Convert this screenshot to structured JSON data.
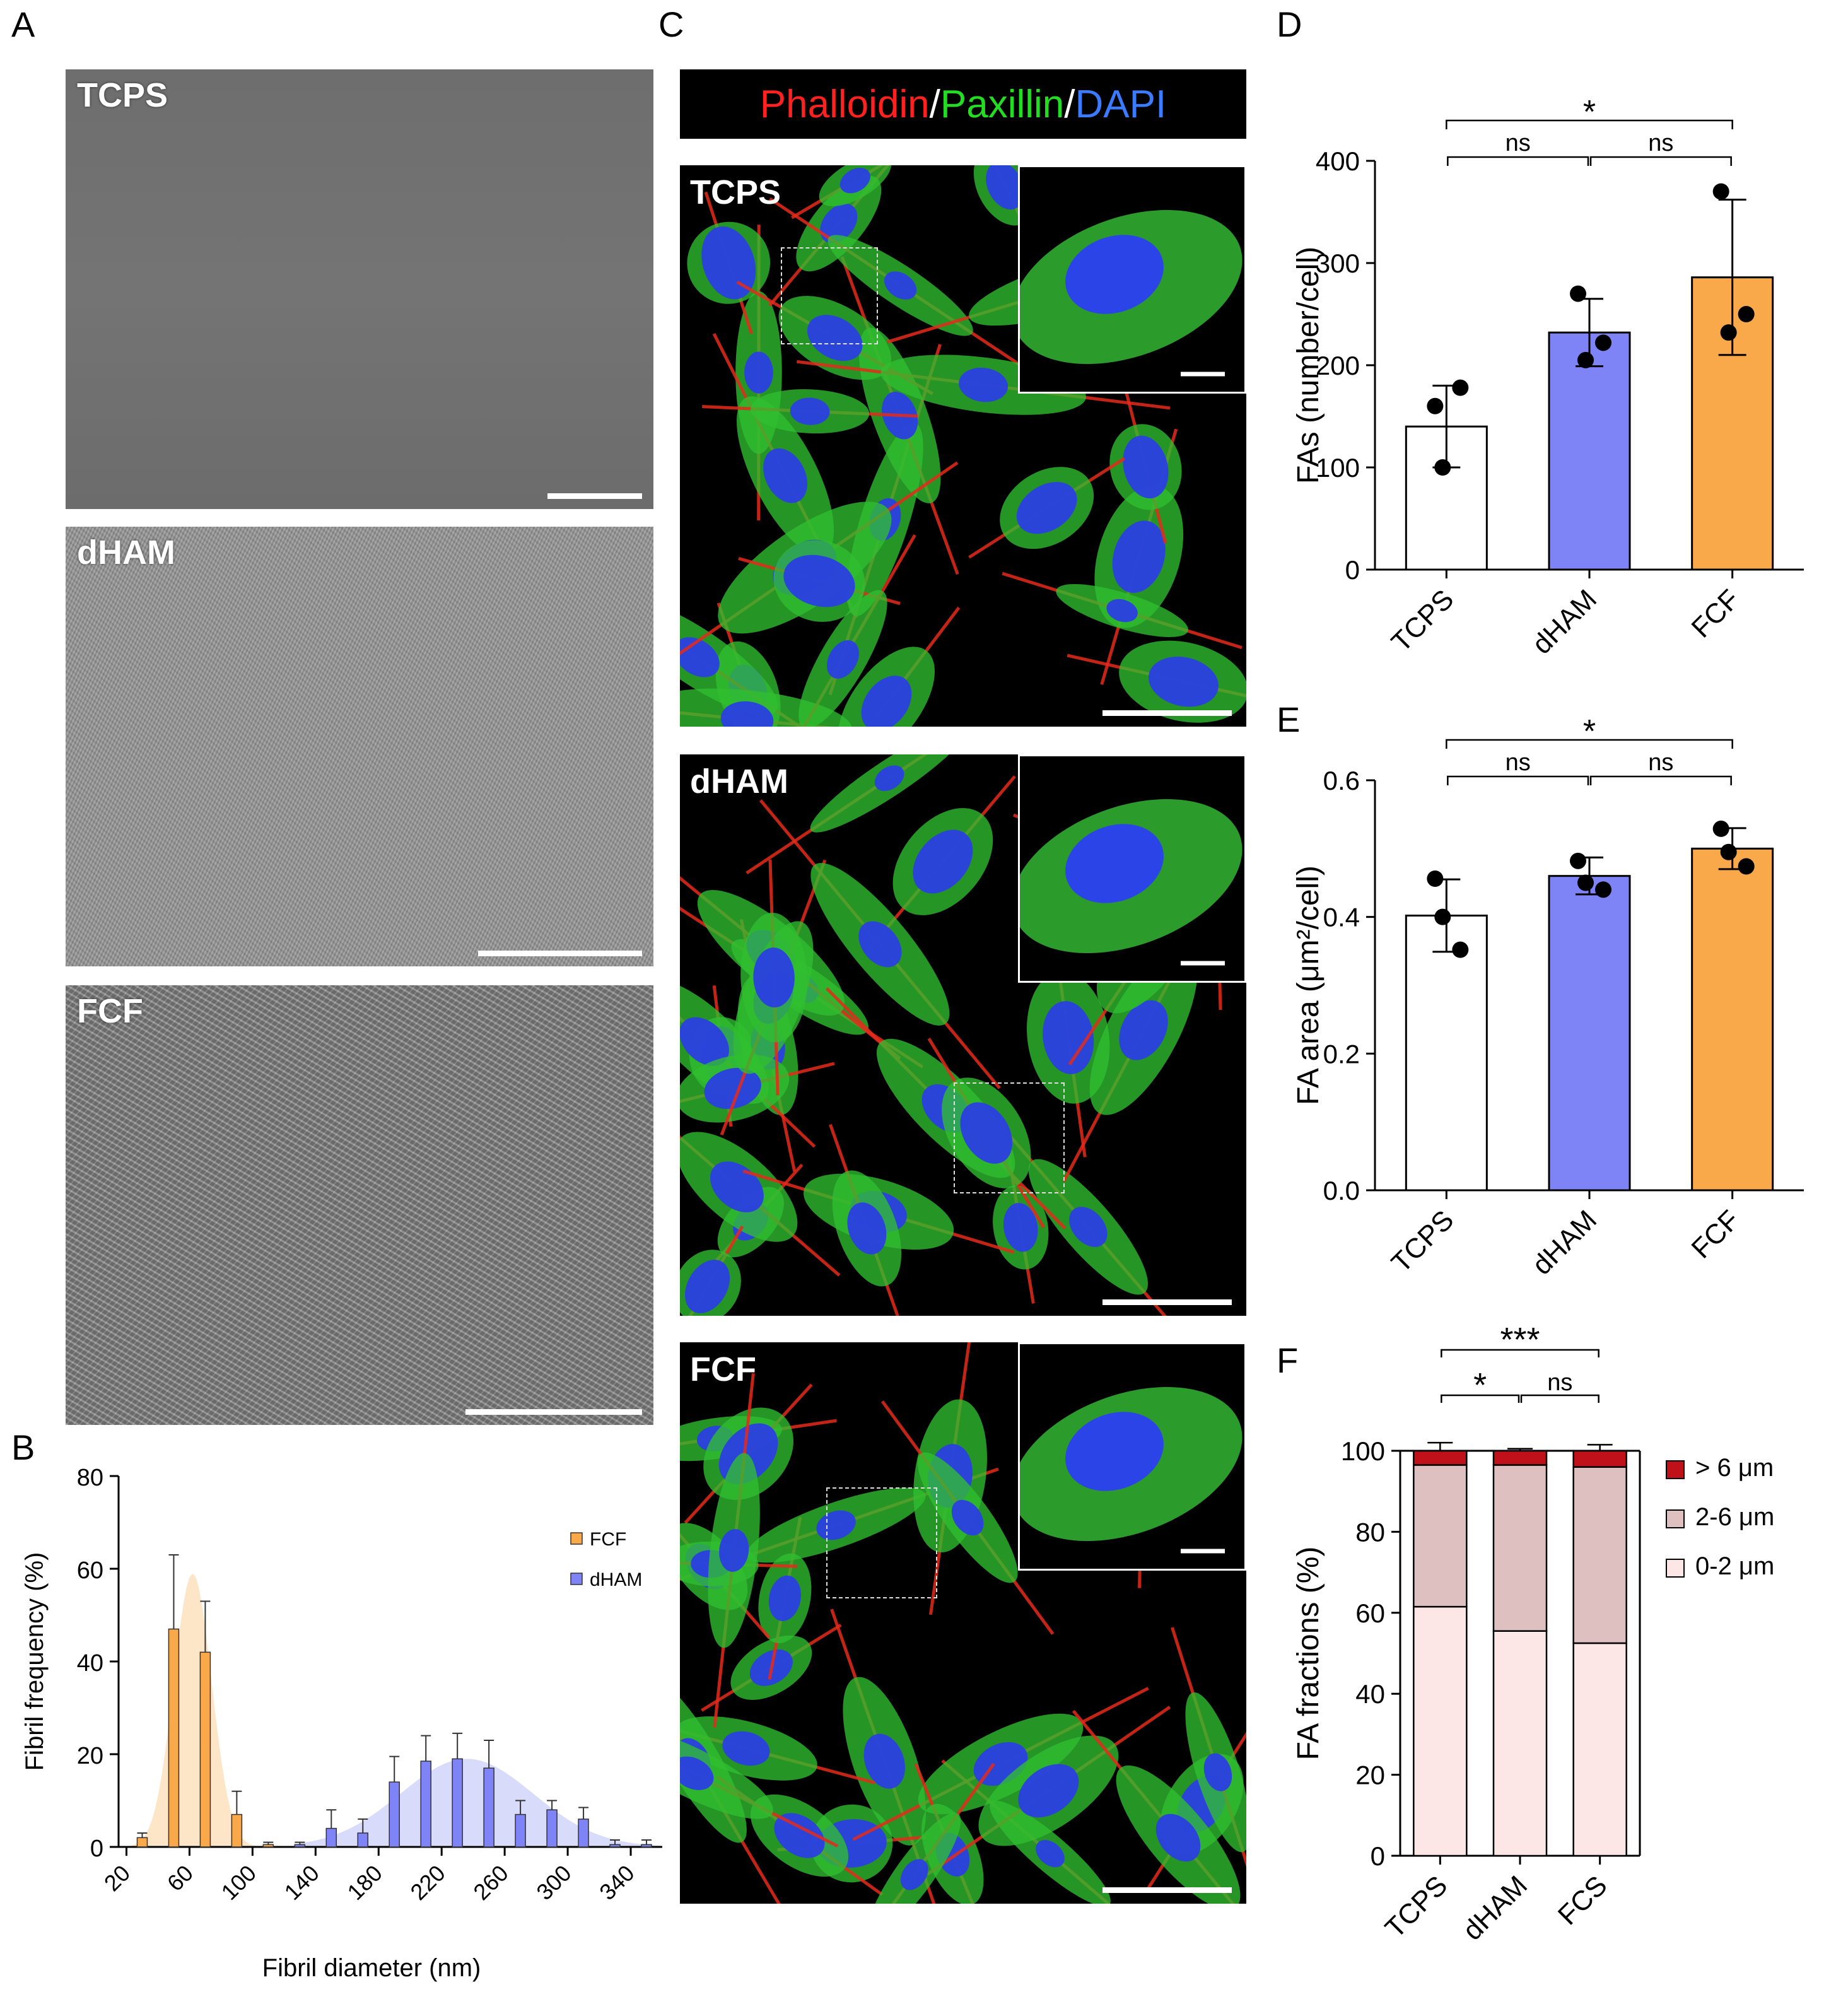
{
  "panel_letters": {
    "a": "A",
    "b": "B",
    "c": "C",
    "d": "D",
    "e": "E",
    "f": "F"
  },
  "panel_a": {
    "images": [
      {
        "label": "TCPS",
        "kind": "flat-surface"
      },
      {
        "label": "dHAM",
        "kind": "textured-surface"
      },
      {
        "label": "FCF",
        "kind": "fibrillar-surface"
      }
    ]
  },
  "panel_c": {
    "header": {
      "parts": [
        {
          "text": "Phalloidin",
          "color": "#ff2020"
        },
        {
          "text": "/",
          "color": "#ffffff"
        },
        {
          "text": "Paxillin",
          "color": "#22dd22"
        },
        {
          "text": "/",
          "color": "#ffffff"
        },
        {
          "text": "DAPI",
          "color": "#3a7bff"
        }
      ]
    },
    "images": [
      {
        "label": "TCPS"
      },
      {
        "label": "dHAM"
      },
      {
        "label": "FCF"
      }
    ]
  },
  "chart_data": [
    {
      "id": "B",
      "type": "bar",
      "xlabel": "Fibril diameter (nm)",
      "ylabel": "Fibril frequency (%)",
      "ylim": [
        0,
        80
      ],
      "yticks": [
        0,
        20,
        40,
        60,
        80
      ],
      "xlim": [
        15,
        360
      ],
      "xticks": [
        20,
        60,
        100,
        140,
        180,
        220,
        260,
        300,
        340
      ],
      "legend": {
        "placement": "right",
        "entries": [
          {
            "name": "FCF",
            "color": "#f9a84a"
          },
          {
            "name": "dHAM",
            "color": "#7e83f5"
          }
        ]
      },
      "series": [
        {
          "name": "FCF",
          "color": "#f9a84a",
          "fit_color": "#fde2c2",
          "x": [
            30,
            50,
            70,
            90,
            110
          ],
          "values": [
            2,
            47,
            42,
            7,
            0.5
          ],
          "err": [
            1,
            16,
            11,
            5,
            0.5
          ]
        },
        {
          "name": "dHAM",
          "color": "#7e83f5",
          "fit_color": "#d5d7fb",
          "x": [
            130,
            150,
            170,
            190,
            210,
            230,
            250,
            270,
            290,
            310,
            330,
            350
          ],
          "values": [
            0.5,
            4,
            3,
            14,
            18.5,
            19,
            17,
            7,
            8,
            6,
            0.5,
            0.5
          ],
          "err": [
            0.5,
            4,
            3,
            5.5,
            5.5,
            5.5,
            6,
            3,
            2,
            2.5,
            1,
            1
          ]
        }
      ]
    },
    {
      "id": "D",
      "type": "bar",
      "categories": [
        "TCPS",
        "dHAM",
        "FCF"
      ],
      "values": [
        140,
        232,
        286
      ],
      "err": [
        40,
        33,
        76
      ],
      "points": [
        [
          160,
          178,
          100
        ],
        [
          270,
          222,
          205
        ],
        [
          370,
          250,
          232
        ]
      ],
      "colors": [
        "#ffffff",
        "#7e83f5",
        "#f9a84a"
      ],
      "ylabel": "FAs (number/cell)",
      "ylim": [
        0,
        400
      ],
      "yticks": [
        0,
        100,
        200,
        300,
        400
      ],
      "significance": [
        {
          "from": 0,
          "to": 1,
          "text": "ns",
          "level": 1
        },
        {
          "from": 1,
          "to": 2,
          "text": "ns",
          "level": 1
        },
        {
          "from": 0,
          "to": 2,
          "text": "*",
          "level": 2
        }
      ]
    },
    {
      "id": "E",
      "type": "bar",
      "categories": [
        "TCPS",
        "dHAM",
        "FCF"
      ],
      "values": [
        0.402,
        0.46,
        0.5
      ],
      "err": [
        0.053,
        0.027,
        0.03
      ],
      "points": [
        [
          0.456,
          0.352,
          0.4
        ],
        [
          0.482,
          0.44,
          0.45
        ],
        [
          0.529,
          0.474,
          0.495
        ]
      ],
      "colors": [
        "#ffffff",
        "#7e83f5",
        "#f9a84a"
      ],
      "ylabel": "FA area (μm²/cell)",
      "ylim": [
        0,
        0.6
      ],
      "yticks": [
        "0.0",
        "0.2",
        "0.4",
        "0.6"
      ],
      "significance": [
        {
          "from": 0,
          "to": 1,
          "text": "ns",
          "level": 1
        },
        {
          "from": 1,
          "to": 2,
          "text": "ns",
          "level": 1
        },
        {
          "from": 0,
          "to": 2,
          "text": "*",
          "level": 2
        }
      ]
    },
    {
      "id": "F",
      "type": "bar",
      "stacked": true,
      "categories": [
        "TCPS",
        "dHAM",
        "FCS"
      ],
      "ylabel": "FA fractions (%)",
      "ylim": [
        0,
        100
      ],
      "yticks": [
        0,
        20,
        40,
        60,
        80,
        100
      ],
      "legend": {
        "placement": "right",
        "entries": [
          {
            "name": "> 6 μm",
            "color": "#c0111a"
          },
          {
            "name": "2-6 μm",
            "color": "#dfc0c0"
          },
          {
            "name": "0-2 μm",
            "color": "#fde6e6"
          }
        ]
      },
      "series": [
        {
          "name": "0-2 μm",
          "color": "#fde6e6",
          "values": [
            61.5,
            55.5,
            52.5
          ],
          "err": [
            4.5,
            2.5,
            2
          ]
        },
        {
          "name": "2-6 μm",
          "color": "#dfc0c0",
          "values": [
            35,
            41,
            43.5
          ],
          "err": [
            0,
            0,
            0
          ]
        },
        {
          "name": "> 6 μm",
          "color": "#c0111a",
          "values": [
            3.5,
            3.5,
            4
          ],
          "err": [
            2,
            0.5,
            1.5
          ]
        }
      ],
      "significance": [
        {
          "from": 0,
          "to": 1,
          "text": "*",
          "level": 1
        },
        {
          "from": 1,
          "to": 2,
          "text": "ns",
          "level": 1
        },
        {
          "from": 0,
          "to": 2,
          "text": "***",
          "level": 2
        }
      ]
    }
  ]
}
